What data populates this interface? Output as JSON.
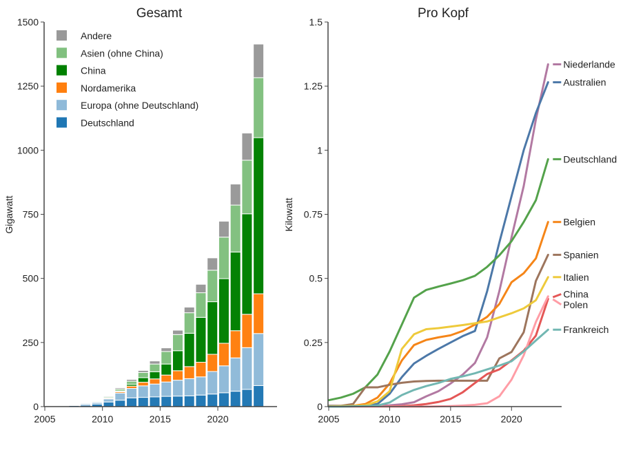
{
  "chart_data": [
    {
      "type": "bar",
      "stacked": true,
      "title": "Gesamt",
      "xlabel": "",
      "ylabel": "Gigawatt",
      "ylim": [
        0,
        1500
      ],
      "xlim": [
        2005,
        2024
      ],
      "yticks": [
        0,
        250,
        500,
        750,
        1000,
        1250,
        1500
      ],
      "ytick_labels": [
        "0",
        "250",
        "500",
        "750",
        "1000",
        "1250",
        "1500"
      ],
      "xticks": [
        2005,
        2010,
        2015,
        2020
      ],
      "xtick_labels": [
        "2005",
        "2010",
        "2015",
        "2020"
      ],
      "legend_position": "top-left",
      "categories": [
        2005,
        2006,
        2007,
        2008,
        2009,
        2010,
        2011,
        2012,
        2013,
        2014,
        2015,
        2016,
        2017,
        2018,
        2019,
        2020,
        2021,
        2022,
        2023
      ],
      "series": [
        {
          "name": "Deutschland",
          "color": "#1f77b4",
          "values": [
            2,
            3,
            4,
            6,
            10,
            18,
            25,
            34,
            36,
            38,
            40,
            41,
            42,
            45,
            49,
            54,
            60,
            67,
            82
          ]
        },
        {
          "name": "Europa (ohne Deutschland)",
          "color": "#8fbad9",
          "values": [
            0.5,
            1,
            2,
            5,
            6,
            12,
            28,
            37,
            45,
            50,
            56,
            62,
            67,
            71,
            88,
            105,
            130,
            163,
            203
          ]
        },
        {
          "name": "Nordamerika",
          "color": "#ff7f0e",
          "values": [
            0.2,
            0.3,
            0.5,
            1,
            1.5,
            3,
            5,
            9,
            14,
            20,
            27,
            37,
            47,
            57,
            67,
            88,
            106,
            130,
            155
          ]
        },
        {
          "name": "China",
          "color": "#008000",
          "values": [
            0.1,
            0.1,
            0.1,
            0.2,
            0.4,
            1,
            3,
            7,
            18,
            28,
            43,
            78,
            130,
            175,
            205,
            252,
            307,
            392,
            609
          ]
        },
        {
          "name": "Asien (ohne China)",
          "color": "#81c07f",
          "values": [
            1,
            1,
            1.5,
            2,
            3,
            4,
            7,
            12,
            20,
            30,
            49,
            63,
            80,
            96,
            123,
            162,
            183,
            209,
            234
          ]
        },
        {
          "name": "Andere",
          "color": "#999999",
          "values": [
            0.3,
            0.4,
            0.6,
            1,
            1.5,
            3,
            5,
            7,
            8,
            12,
            14,
            17,
            22,
            33,
            48,
            62,
            82,
            106,
            131
          ]
        }
      ]
    },
    {
      "type": "line",
      "title": "Pro Kopf",
      "xlabel": "",
      "ylabel": "Kilowatt",
      "ylim": [
        0,
        1.5
      ],
      "xlim": [
        2005,
        2024
      ],
      "yticks": [
        0,
        0.25,
        0.5,
        0.75,
        1,
        1.25,
        1.5
      ],
      "ytick_labels": [
        "0",
        "0.25",
        "0.5",
        "0.75",
        "1",
        "1.25",
        "1.5"
      ],
      "xticks": [
        2005,
        2010,
        2015,
        2020
      ],
      "xtick_labels": [
        "2005",
        "2010",
        "2015",
        "2020"
      ],
      "legend_position": "right-end-labels",
      "x": [
        2005,
        2006,
        2007,
        2008,
        2009,
        2010,
        2011,
        2012,
        2013,
        2014,
        2015,
        2016,
        2017,
        2018,
        2019,
        2020,
        2021,
        2022,
        2023
      ],
      "series": [
        {
          "name": "Niederlande",
          "color": "#b279a2",
          "values": [
            0.003,
            0.003,
            0.003,
            0.003,
            0.004,
            0.005,
            0.009,
            0.017,
            0.04,
            0.06,
            0.09,
            0.125,
            0.17,
            0.27,
            0.45,
            0.66,
            0.86,
            1.12,
            1.335
          ]
        },
        {
          "name": "Australien",
          "color": "#4c78a8",
          "values": [
            0.001,
            0.002,
            0.003,
            0.004,
            0.01,
            0.05,
            0.115,
            0.168,
            0.198,
            0.225,
            0.25,
            0.275,
            0.295,
            0.45,
            0.64,
            0.82,
            1.0,
            1.145,
            1.265
          ]
        },
        {
          "name": "Deutschland",
          "color": "#54a24b",
          "values": [
            0.025,
            0.035,
            0.05,
            0.075,
            0.125,
            0.215,
            0.32,
            0.425,
            0.455,
            0.468,
            0.48,
            0.493,
            0.51,
            0.545,
            0.59,
            0.645,
            0.72,
            0.805,
            0.965
          ]
        },
        {
          "name": "Belgien",
          "color": "#f58518",
          "values": [
            0.001,
            0.002,
            0.003,
            0.01,
            0.035,
            0.09,
            0.18,
            0.24,
            0.26,
            0.27,
            0.278,
            0.295,
            0.32,
            0.35,
            0.4,
            0.485,
            0.52,
            0.578,
            0.72
          ]
        },
        {
          "name": "Spanien",
          "color": "#9d755d",
          "values": [
            0.003,
            0.003,
            0.01,
            0.075,
            0.075,
            0.085,
            0.093,
            0.098,
            0.1,
            0.101,
            0.101,
            0.101,
            0.101,
            0.101,
            0.188,
            0.213,
            0.29,
            0.49,
            0.592
          ]
        },
        {
          "name": "Italien",
          "color": "#eeca3b",
          "values": [
            0.001,
            0.002,
            0.003,
            0.005,
            0.02,
            0.06,
            0.225,
            0.282,
            0.302,
            0.306,
            0.312,
            0.318,
            0.325,
            0.332,
            0.348,
            0.364,
            0.383,
            0.415,
            0.505
          ]
        },
        {
          "name": "China",
          "color": "#e45756",
          "values": [
            0.0,
            0.0,
            0.0,
            0.0,
            0.0,
            0.001,
            0.002,
            0.005,
            0.01,
            0.018,
            0.03,
            0.056,
            0.092,
            0.127,
            0.145,
            0.18,
            0.218,
            0.277,
            0.42
          ]
        },
        {
          "name": "Polen",
          "color": "#ff9da6",
          "values": [
            0.0,
            0.0,
            0.0,
            0.0,
            0.0,
            0.0,
            0.0,
            0.0,
            0.0,
            0.001,
            0.002,
            0.004,
            0.007,
            0.013,
            0.04,
            0.105,
            0.2,
            0.33,
            0.43
          ]
        },
        {
          "name": "Frankreich",
          "color": "#72b7b2",
          "values": [
            0.0,
            0.0,
            0.001,
            0.002,
            0.004,
            0.016,
            0.045,
            0.065,
            0.08,
            0.092,
            0.108,
            0.118,
            0.13,
            0.145,
            0.16,
            0.177,
            0.215,
            0.258,
            0.3
          ]
        }
      ]
    }
  ]
}
